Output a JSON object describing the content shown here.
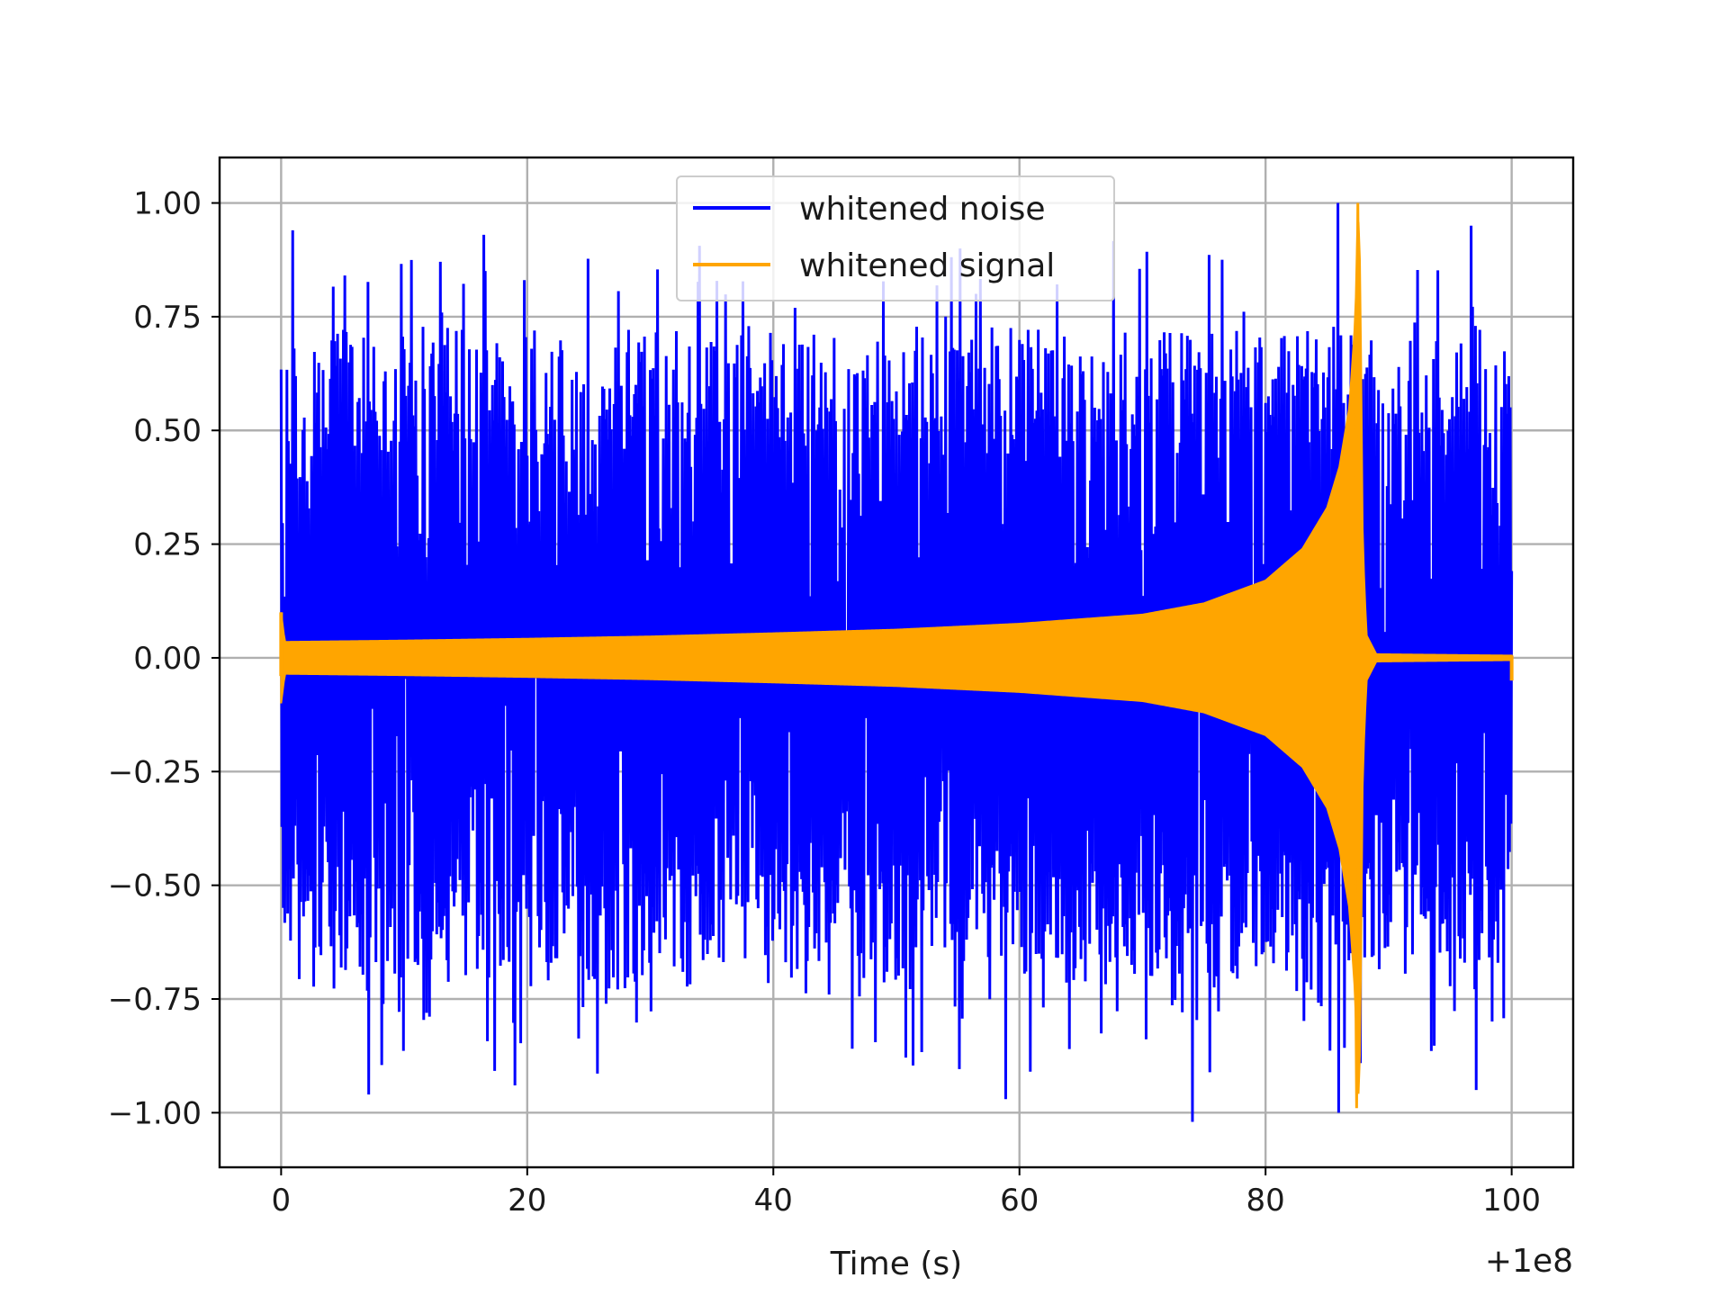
{
  "chart_data": {
    "type": "line",
    "xlabel": "Time (s)",
    "ylabel": "",
    "x_offset_label": "+1e8",
    "xlim": [
      -5,
      105
    ],
    "ylim": [
      -1.12,
      1.1
    ],
    "grid": true,
    "legend_placement": "upper center",
    "x_ticks": [
      0,
      20,
      40,
      60,
      80,
      100
    ],
    "x_tick_labels": [
      "0",
      "20",
      "40",
      "60",
      "80",
      "100"
    ],
    "y_ticks": [
      1.0,
      0.75,
      0.5,
      0.25,
      0.0,
      -0.25,
      -0.5,
      -0.75,
      -1.0
    ],
    "y_tick_labels": [
      "1.00",
      "0.75",
      "0.50",
      "0.25",
      "0.00",
      "−0.25",
      "−0.50",
      "−0.75",
      "−1.00"
    ],
    "series": [
      {
        "name": "whitened noise",
        "color": "#0000ff",
        "x_range": [
          0,
          100
        ],
        "envelope_description": "dense random noise filling roughly -0.7 to 0.7 with spikes up to about ±1.0",
        "notable_peaks": [
          {
            "x": 85.9,
            "y": 1.0
          },
          {
            "x": 74.1,
            "y": -1.02
          },
          {
            "x": 86.0,
            "y": -1.0
          },
          {
            "x": 1.0,
            "y": 0.94
          },
          {
            "x": 7.1,
            "y": -0.96
          },
          {
            "x": 16.5,
            "y": 0.93
          },
          {
            "x": 19.0,
            "y": -0.94
          },
          {
            "x": 55.2,
            "y": 0.9
          },
          {
            "x": 58.9,
            "y": -0.97
          },
          {
            "x": 96.7,
            "y": 0.95
          },
          {
            "x": 97.1,
            "y": -0.95
          }
        ]
      },
      {
        "name": "whitened signal",
        "color": "#ffa500",
        "x_range": [
          0,
          100
        ],
        "envelope": {
          "t": [
            0,
            0.3,
            10,
            20,
            30,
            40,
            50,
            60,
            70,
            75,
            80,
            83,
            85,
            86,
            86.8,
            87.3,
            87.5,
            87.7,
            87.9,
            88.2,
            89,
            100
          ],
          "amplitude": [
            0.1,
            0.035,
            0.038,
            0.042,
            0.047,
            0.054,
            0.062,
            0.075,
            0.095,
            0.12,
            0.17,
            0.24,
            0.33,
            0.42,
            0.55,
            0.75,
            1.0,
            0.85,
            0.25,
            0.05,
            0.008,
            0.005
          ]
        },
        "peak": {
          "x": 87.5,
          "y": 1.0
        },
        "trough": {
          "x": 87.4,
          "y": -0.99
        }
      }
    ]
  }
}
